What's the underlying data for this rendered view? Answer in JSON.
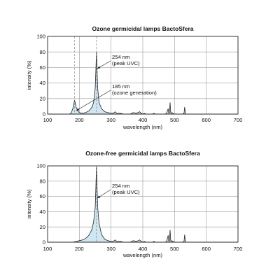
{
  "chart_data": [
    {
      "type": "line",
      "title": "Ozone germicidal lamps BactoSfera",
      "xlabel": "wavelength (nm)",
      "ylabel": "intensity (%)",
      "xlim": [
        100,
        700
      ],
      "ylim": [
        0,
        100
      ],
      "xticks": [
        100,
        200,
        300,
        400,
        500,
        600,
        700
      ],
      "yticks": [
        0,
        20,
        40,
        60,
        80,
        100
      ],
      "grid": true,
      "fill_color": "#cfe6f3",
      "guide_lines_x": [
        185,
        254
      ],
      "series": [
        {
          "x": [
            100,
            160,
            170,
            175,
            180,
            185,
            190,
            195,
            200,
            210,
            220,
            230,
            240,
            245,
            250,
            252,
            254,
            256,
            258,
            262,
            270,
            280,
            290,
            300,
            305,
            310,
            313,
            318,
            325,
            330,
            340,
            350,
            360,
            365,
            370,
            380,
            385,
            390,
            395,
            400,
            405,
            410,
            420,
            430,
            435,
            440,
            450,
            460,
            470,
            475,
            480,
            482,
            484,
            486,
            488,
            490,
            492,
            495,
            500,
            510,
            520,
            525,
            530,
            532,
            534,
            536,
            540,
            560,
            600,
            650,
            700
          ],
          "y": [
            0,
            0,
            0,
            2,
            8,
            18,
            9,
            4,
            2,
            1,
            2,
            4,
            9,
            15,
            33,
            55,
            80,
            55,
            33,
            15,
            7,
            3,
            2,
            1,
            1,
            2,
            3,
            1,
            1,
            1,
            0,
            0,
            0,
            1,
            2,
            1,
            2,
            3,
            1,
            0,
            1,
            0,
            0,
            0,
            1,
            0,
            0,
            0,
            0,
            1,
            7,
            1,
            2,
            15,
            2,
            1,
            2,
            1,
            0,
            0,
            0,
            0,
            1,
            9,
            1,
            0,
            0,
            0,
            0,
            0,
            0
          ]
        }
      ],
      "annotations": [
        {
          "x": 254,
          "y": 80,
          "lines": [
            "254 nm",
            "(peak UVC)"
          ]
        },
        {
          "x": 185,
          "y": 5,
          "lines": [
            "185 nm",
            "(ozone generation)"
          ]
        }
      ]
    },
    {
      "type": "line",
      "title": "Ozone-free germicidal lamps BactoSfera",
      "xlabel": "wavelength (nm)",
      "ylabel": "intensity (%)",
      "xlim": [
        100,
        700
      ],
      "ylim": [
        0,
        100
      ],
      "xticks": [
        100,
        200,
        300,
        400,
        500,
        600,
        700
      ],
      "yticks": [
        0,
        20,
        40,
        60,
        80,
        100
      ],
      "grid": true,
      "fill_color": "#cfe6f3",
      "guide_lines_x": [
        254
      ],
      "series": [
        {
          "x": [
            100,
            180,
            190,
            200,
            210,
            220,
            230,
            240,
            245,
            250,
            252,
            254,
            256,
            258,
            262,
            270,
            280,
            290,
            300,
            305,
            310,
            313,
            318,
            325,
            330,
            340,
            350,
            360,
            365,
            370,
            380,
            385,
            390,
            395,
            400,
            405,
            410,
            420,
            430,
            435,
            440,
            450,
            460,
            470,
            475,
            480,
            482,
            484,
            486,
            488,
            490,
            492,
            495,
            500,
            510,
            520,
            525,
            530,
            532,
            534,
            536,
            540,
            560,
            600,
            650,
            700
          ],
          "y": [
            0,
            0,
            1,
            2,
            3,
            5,
            9,
            17,
            27,
            45,
            70,
            100,
            70,
            45,
            25,
            10,
            4,
            2,
            1,
            1,
            2,
            3,
            1,
            1,
            1,
            0,
            0,
            0,
            1,
            2,
            1,
            2,
            3,
            1,
            0,
            1,
            0,
            0,
            0,
            1,
            0,
            0,
            0,
            0,
            1,
            9,
            1,
            2,
            16,
            2,
            1,
            2,
            1,
            0,
            0,
            0,
            0,
            1,
            10,
            1,
            0,
            0,
            0,
            0,
            0,
            0
          ]
        }
      ],
      "annotations": [
        {
          "x": 254,
          "y": 62,
          "lines": [
            "254 nm",
            "(peak UVC)"
          ]
        }
      ]
    }
  ]
}
